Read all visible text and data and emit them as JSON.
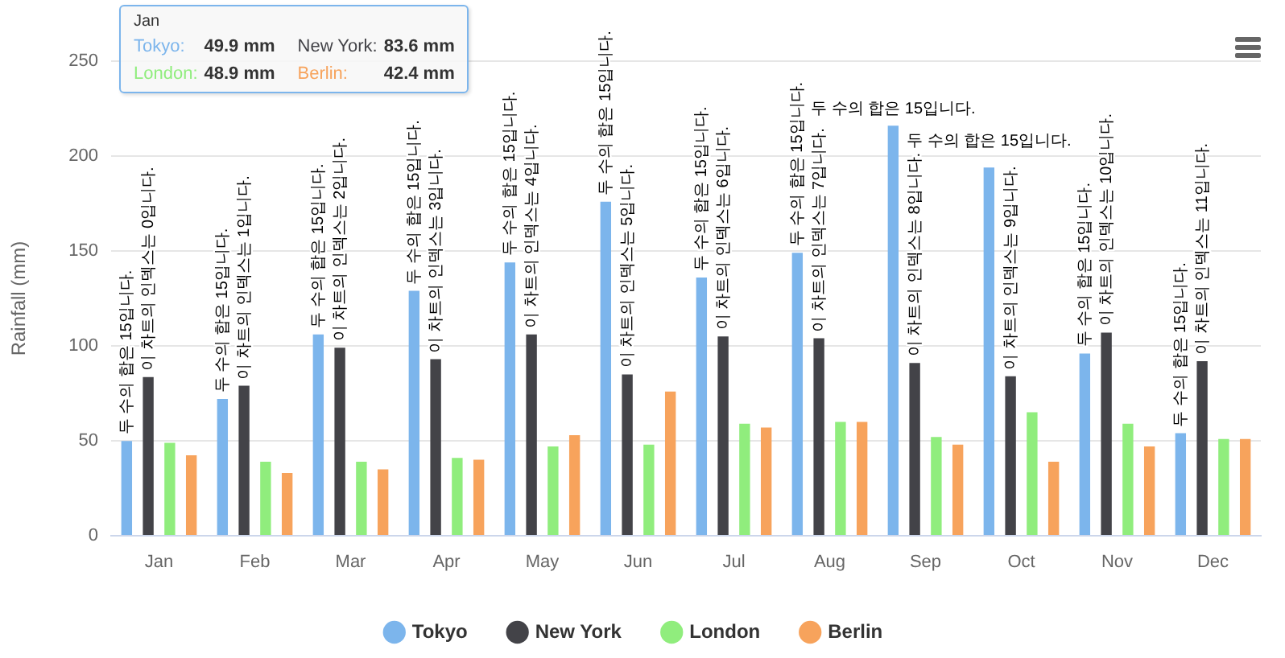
{
  "chart_data": {
    "type": "bar",
    "ylabel": "Rainfall (mm)",
    "categories": [
      "Jan",
      "Feb",
      "Mar",
      "Apr",
      "May",
      "Jun",
      "Jul",
      "Aug",
      "Sep",
      "Oct",
      "Nov",
      "Dec"
    ],
    "series": [
      {
        "name": "Tokyo",
        "color": "#7cb5ec",
        "values": [
          49.9,
          72,
          106,
          129,
          144,
          176,
          136,
          149,
          216,
          194,
          96,
          54
        ],
        "value_labels": [
          "두 수의 합은 15입니다.",
          "두 수의 합은 15입니다.",
          "두 수의 합은 15입니다.",
          "두 수의 합은 15입니다.",
          "두 수의 합은 15입니다.",
          "두 수의 합은 15입니다.",
          "두 수의 합은 15입니다.",
          "두 수의 합은 15입니다.",
          "두 수의 합은 15입니다.",
          "두 수의 합은 15입니다.",
          "두 수의 합은 15입니다.",
          "두 수의 합은 15입니다."
        ]
      },
      {
        "name": "New York",
        "color": "#434348",
        "values": [
          83.6,
          79,
          99,
          93,
          106,
          85,
          105,
          104,
          91,
          84,
          107,
          92
        ],
        "value_labels": [
          "이 차트의 인덱스는 0입니다.",
          "이 차트의 인덱스는 1입니다.",
          "이 차트의 인덱스는 2입니다.",
          "이 차트의 인덱스는 3입니다.",
          "이 차트의 인덱스는 4입니다.",
          "이 차트의 인덱스는 5입니다.",
          "이 차트의 인덱스는 6입니다.",
          "이 차트의 인덱스는 7입니다.",
          "이 차트의 인덱스는 8입니다.",
          "이 차트의 인덱스는 9입니다.",
          "이 차트의 인덱스는 10입니다.",
          "이 차트의 인덱스는 11입니다."
        ]
      },
      {
        "name": "London",
        "color": "#90ed7d",
        "values": [
          48.9,
          39,
          39,
          41,
          47,
          48,
          59,
          60,
          52,
          65,
          59,
          51
        ]
      },
      {
        "name": "Berlin",
        "color": "#f7a35c",
        "values": [
          42.4,
          33,
          35,
          40,
          53,
          76,
          57,
          60,
          48,
          39,
          47,
          51
        ]
      }
    ],
    "ylim": [
      0,
      250
    ],
    "yticks": [
      0,
      50,
      100,
      150,
      200,
      250
    ],
    "grid": "y",
    "legend": "bottom",
    "annotations": [
      "Jan",
      "Tokyo: 49.9 mm",
      "New York: 83.6 mm",
      "London: 48.9 mm",
      "Berlin: 42.4 mm"
    ]
  }
}
